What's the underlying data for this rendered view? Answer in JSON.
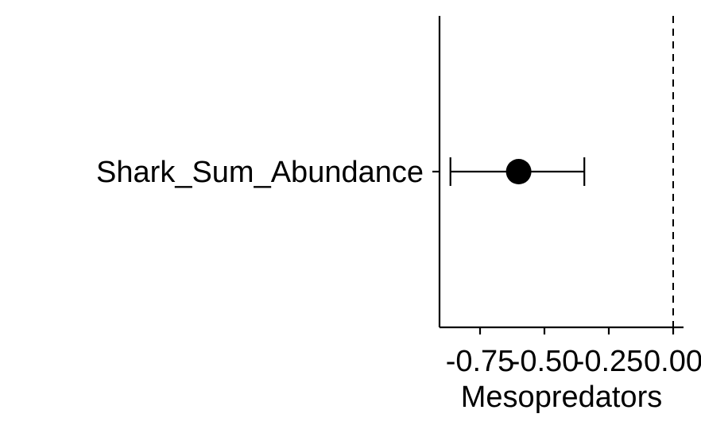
{
  "chart_data": {
    "type": "scatter",
    "subtype": "coefficient-plot-with-error-bars",
    "title": "",
    "xlabel": "Mesopredators",
    "ylabel": "",
    "xlim": [
      -0.88,
      0.04
    ],
    "x_ticks": [
      -0.75,
      -0.5,
      -0.25,
      0.0
    ],
    "x_tick_labels": [
      "-0.75",
      "-0.50",
      "-0.25",
      "0.00"
    ],
    "reference_line": {
      "x": 0.0,
      "style": "dashed"
    },
    "grid": false,
    "legend": "none",
    "categories": [
      "Shark_Sum_Abundance"
    ],
    "points": [
      {
        "category": "Shark_Sum_Abundance",
        "estimate": -0.6,
        "lower": -0.865,
        "upper": -0.345
      }
    ],
    "colors": {
      "point": "#000000",
      "lines": "#000000",
      "background": "#ffffff"
    }
  }
}
